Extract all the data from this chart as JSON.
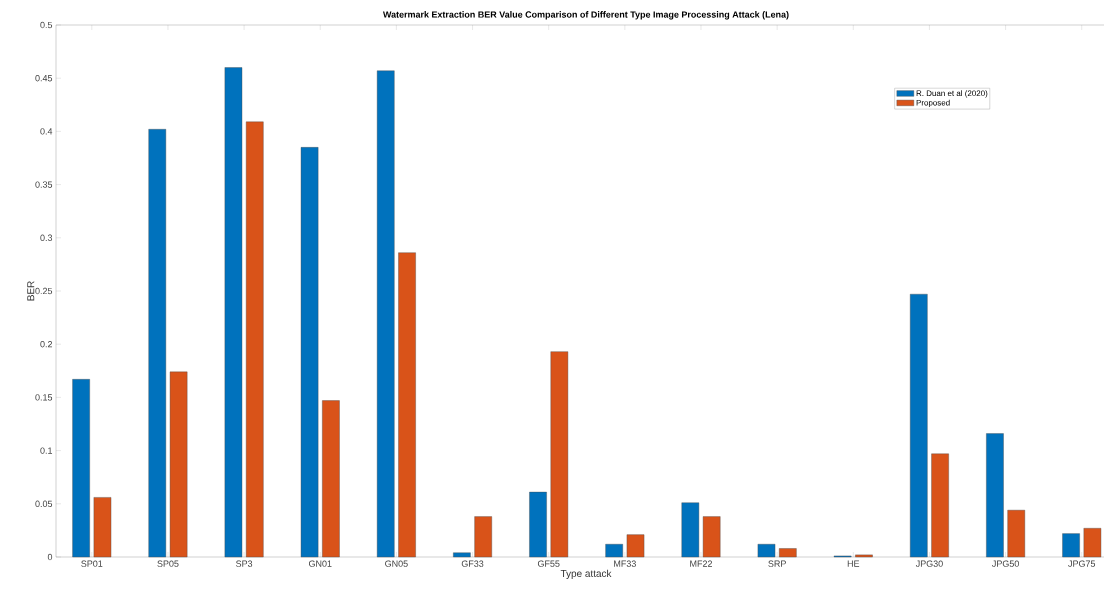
{
  "chart_data": {
    "type": "bar",
    "title": "Watermark Extraction BER Value Comparison of Different Type Image Processing Attack (Lena)",
    "xlabel": "Type attack",
    "ylabel": "BER",
    "categories": [
      "SP01",
      "SP05",
      "SP3",
      "GN01",
      "GN05",
      "GF33",
      "GF55",
      "MF33",
      "MF22",
      "SRP",
      "HE",
      "JPG30",
      "JPG50",
      "JPG75"
    ],
    "series": [
      {
        "name": "R. Duan et al (2020)",
        "color": "#0072bd",
        "values": [
          0.167,
          0.402,
          0.46,
          0.385,
          0.457,
          0.004,
          0.061,
          0.012,
          0.051,
          0.012,
          0.001,
          0.247,
          0.116,
          0.022
        ]
      },
      {
        "name": "Proposed",
        "color": "#d95319",
        "values": [
          0.056,
          0.174,
          0.409,
          0.147,
          0.286,
          0.038,
          0.193,
          0.021,
          0.038,
          0.008,
          0.002,
          0.097,
          0.044,
          0.027
        ]
      }
    ],
    "ylim": [
      0,
      0.5
    ],
    "yticks": [
      0,
      0.05,
      0.1,
      0.15,
      0.2,
      0.25,
      0.3,
      0.35,
      0.4,
      0.45,
      0.5
    ],
    "grid": false,
    "legend": "top right"
  }
}
